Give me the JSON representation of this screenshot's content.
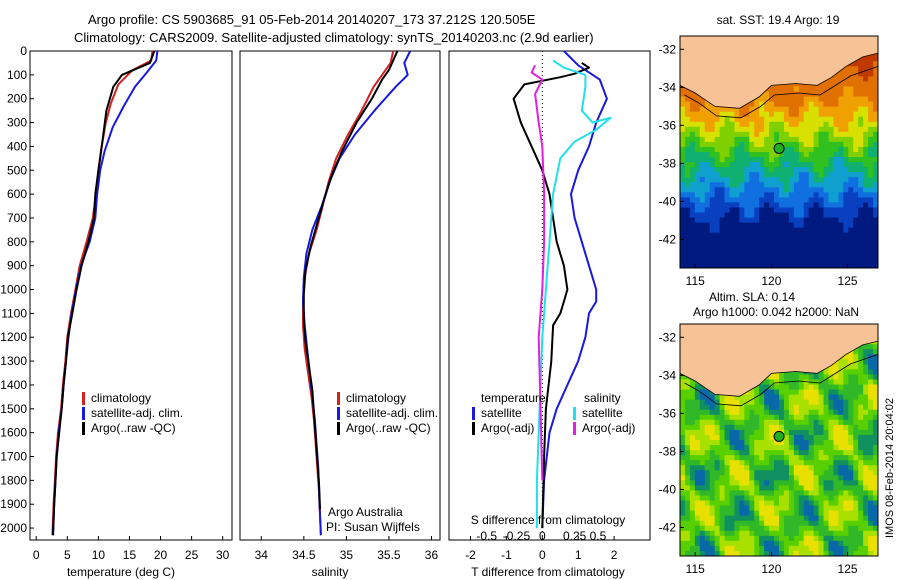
{
  "header": {
    "title_line1": "Argo profile: CS 5903685_91 05-Feb-2014 20140207_173 37.212S 120.505E",
    "title_line2": "Climatology: CARS2009. Satellite-adjusted climatology: synTS_20140203.nc (2.9d earlier)"
  },
  "colors": {
    "climatology": "#d42020",
    "satellite": "#1818e0",
    "argo": "#000000",
    "sat_salinity": "#22e0e8",
    "argo_salinity": "#e020e0"
  },
  "chart_data": [
    {
      "type": "line",
      "id": "temperature",
      "xlabel": "temperature (deg C)",
      "ylabel": "",
      "xlim": [
        -1,
        31.5
      ],
      "ylim": [
        2050,
        0
      ],
      "xticks": [
        0,
        5,
        10,
        15,
        20,
        25,
        30
      ],
      "yticks": [
        0,
        100,
        200,
        300,
        400,
        500,
        600,
        700,
        800,
        900,
        1000,
        1100,
        1200,
        1300,
        1400,
        1500,
        1600,
        1700,
        1800,
        1900,
        2000
      ],
      "legend": [
        "climatology",
        "satellite-adj. clim.",
        "Argo(..raw -QC)"
      ],
      "series": [
        {
          "name": "climatology",
          "color": "#d42020",
          "x": [
            18.7,
            18.5,
            15.5,
            13.2,
            12.0,
            11.2,
            10.4,
            10.0,
            9.6,
            9.1,
            8.1,
            7.0,
            6.3,
            5.6,
            5.0,
            4.7,
            4.3,
            4.0,
            3.5,
            3.2,
            3.0,
            2.8,
            2.6
          ],
          "y": [
            0,
            40,
            80,
            140,
            220,
            300,
            420,
            500,
            600,
            700,
            800,
            900,
            1000,
            1100,
            1200,
            1300,
            1400,
            1500,
            1600,
            1700,
            1800,
            1900,
            2030
          ]
        },
        {
          "name": "satellite-adj. clim.",
          "color": "#1818e0",
          "x": [
            19.5,
            19.3,
            17.8,
            15.9,
            14.1,
            12.3,
            11.0,
            10.3,
            9.8,
            9.5,
            8.6,
            7.2,
            6.4,
            5.7,
            5.2,
            4.8,
            4.4,
            4.1,
            3.6,
            3.3,
            3.1,
            2.9,
            2.7
          ],
          "y": [
            0,
            40,
            90,
            150,
            230,
            320,
            420,
            500,
            600,
            700,
            800,
            900,
            1000,
            1100,
            1200,
            1300,
            1400,
            1500,
            1600,
            1700,
            1800,
            1900,
            2030
          ]
        },
        {
          "name": "Argo(..raw -QC)",
          "color": "#000000",
          "x": [
            19.0,
            18.3,
            13.8,
            12.4,
            11.3,
            10.3,
            10.0,
            9.5,
            9.3,
            8.4,
            7.3,
            6.5,
            5.8,
            5.1,
            4.8,
            4.4,
            4.1,
            3.7,
            3.3,
            3.1,
            2.9,
            2.7
          ],
          "y": [
            0,
            50,
            100,
            150,
            250,
            450,
            500,
            600,
            700,
            800,
            900,
            1000,
            1100,
            1200,
            1300,
            1400,
            1500,
            1600,
            1700,
            1800,
            1900,
            2030
          ]
        }
      ]
    },
    {
      "type": "line",
      "id": "salinity",
      "xlabel": "salinity",
      "ylabel": "",
      "xlim": [
        33.75,
        36.1
      ],
      "ylim": [
        2050,
        0
      ],
      "xticks": [
        34,
        34.5,
        35,
        35.5,
        36
      ],
      "legend": [
        "climatology",
        "satellite-adj. clim.",
        "Argo(..raw -QC)"
      ],
      "annotations": [
        "Argo Australia",
        "PI: Susan Wijffels"
      ],
      "series": [
        {
          "name": "climatology",
          "color": "#d42020",
          "x": [
            35.55,
            35.52,
            35.42,
            35.32,
            35.18,
            35.02,
            34.88,
            34.79,
            34.72,
            34.65,
            34.56,
            34.51,
            34.49,
            34.49,
            34.51,
            34.55,
            34.59,
            34.62,
            34.64,
            34.66,
            34.68,
            34.69,
            34.7
          ],
          "y": [
            0,
            50,
            100,
            150,
            250,
            350,
            450,
            550,
            650,
            750,
            850,
            950,
            1050,
            1150,
            1250,
            1350,
            1450,
            1550,
            1650,
            1750,
            1850,
            1950,
            2030
          ]
        },
        {
          "name": "satellite-adj. clim.",
          "color": "#1818e0",
          "x": [
            35.75,
            35.68,
            35.72,
            35.58,
            35.33,
            35.1,
            34.92,
            34.8,
            34.71,
            34.6,
            34.53,
            34.5,
            34.49,
            34.51,
            34.54,
            34.57,
            34.6,
            34.63,
            34.65,
            34.67,
            34.68,
            34.7
          ],
          "y": [
            0,
            50,
            100,
            150,
            250,
            350,
            450,
            550,
            650,
            750,
            850,
            950,
            1050,
            1150,
            1250,
            1350,
            1450,
            1550,
            1650,
            1750,
            1850,
            2030
          ]
        },
        {
          "name": "Argo(..raw -QC)",
          "color": "#000000",
          "x": [
            35.6,
            35.55,
            35.5,
            35.42,
            35.3,
            35.12,
            34.95,
            34.83,
            34.74,
            34.66,
            34.58,
            34.52,
            34.5,
            34.5,
            34.52,
            34.56,
            34.6,
            34.62,
            34.64,
            34.66,
            34.68,
            34.69
          ],
          "y": [
            0,
            40,
            80,
            120,
            200,
            300,
            420,
            520,
            620,
            720,
            820,
            920,
            1020,
            1120,
            1220,
            1320,
            1420,
            1520,
            1620,
            1720,
            1820,
            1920
          ]
        }
      ]
    },
    {
      "type": "line",
      "id": "differences",
      "xlabel": "T difference from climatology",
      "xlabel_top": "S difference from climatology",
      "xlim": [
        -2.6,
        3.0
      ],
      "ylim": [
        2050,
        0
      ],
      "xticks_T": [
        -2,
        -1,
        0,
        1,
        2
      ],
      "xticks_S_labels": [
        "-0.5",
        "-0.25",
        "0",
        "0.25",
        "0.5"
      ],
      "xticks_S_pos": [
        -1.55,
        -0.72,
        0,
        0.9,
        1.55
      ],
      "legend_temperature_title": "temperature",
      "legend_salinity_title": "salinity",
      "legend": [
        "satellite",
        "Argo(-adj)",
        "satellite",
        "Argo(-adj)"
      ],
      "series": [
        {
          "name": "T satellite",
          "color": "#1818e0",
          "x": [
            0.6,
            1.0,
            1.6,
            1.8,
            1.5,
            1.3,
            1.0,
            0.8,
            0.9,
            1.1,
            1.2,
            1.3,
            1.4,
            1.5,
            1.5,
            1.3,
            1.2,
            1.0,
            0.7,
            0.4,
            0.2,
            0.05,
            0.0
          ],
          "y": [
            0,
            60,
            120,
            200,
            300,
            400,
            500,
            600,
            700,
            800,
            850,
            900,
            950,
            1000,
            1050,
            1100,
            1200,
            1300,
            1400,
            1500,
            1600,
            1800,
            2000
          ]
        },
        {
          "name": "T Argo(-adj)",
          "color": "#000000",
          "x": [
            1.1,
            1.3,
            0.9,
            0.5,
            -0.5,
            -0.8,
            -0.6,
            -0.3,
            0.0,
            0.2,
            0.3,
            0.4,
            0.6,
            0.7,
            0.6,
            0.5,
            0.3,
            0.25,
            0.1,
            0.05,
            0.0
          ],
          "y": [
            50,
            70,
            95,
            110,
            140,
            200,
            300,
            400,
            500,
            600,
            700,
            800,
            900,
            1000,
            1050,
            1100,
            1150,
            1300,
            1500,
            1700,
            2000
          ]
        },
        {
          "name": "S satellite",
          "color": "#22e0e8",
          "x": [
            0.3,
            0.6,
            1.2,
            1.2,
            1.1,
            1.4,
            1.9,
            1.5,
            0.9,
            0.5,
            0.3,
            0.2,
            0.1,
            0.0,
            -0.05,
            -0.1,
            -0.15,
            -0.15
          ],
          "y": [
            40,
            70,
            100,
            150,
            250,
            300,
            280,
            330,
            380,
            450,
            600,
            800,
            1000,
            1200,
            1400,
            1600,
            1800,
            2000
          ]
        },
        {
          "name": "S Argo(-adj)",
          "color": "#e020e0",
          "x": [
            -0.2,
            -0.3,
            0.0,
            -0.2,
            -0.1,
            0.0,
            0.05,
            0.05,
            0.0,
            -0.1,
            -0.05,
            0.0
          ],
          "y": [
            60,
            90,
            120,
            180,
            300,
            400,
            600,
            800,
            1000,
            1200,
            1500,
            1800
          ]
        }
      ]
    },
    {
      "type": "heatmap",
      "id": "sst_map",
      "title": "sat. SST: 19.4 Argo: 19",
      "xlim": [
        114,
        127
      ],
      "ylim": [
        -43.5,
        -31.3
      ],
      "xticks": [
        115,
        120,
        125
      ],
      "yticks": [
        -32,
        -34,
        -36,
        -38,
        -40,
        -42
      ],
      "argo_position": [
        120.505,
        -37.212
      ]
    },
    {
      "type": "heatmap",
      "id": "sla_map",
      "title": "Altim. SLA: 0.14",
      "subtitle": "Argo h1000: 0.042 h2000: NaN",
      "xlim": [
        114,
        127
      ],
      "ylim": [
        -43.5,
        -31.3
      ],
      "xticks": [
        115,
        120,
        125
      ],
      "yticks": [
        -32,
        -34,
        -36,
        -38,
        -40,
        -42
      ],
      "argo_position": [
        120.505,
        -37.212
      ],
      "side_caption": "IMOS 08-Feb-2014 20:04:02"
    }
  ]
}
